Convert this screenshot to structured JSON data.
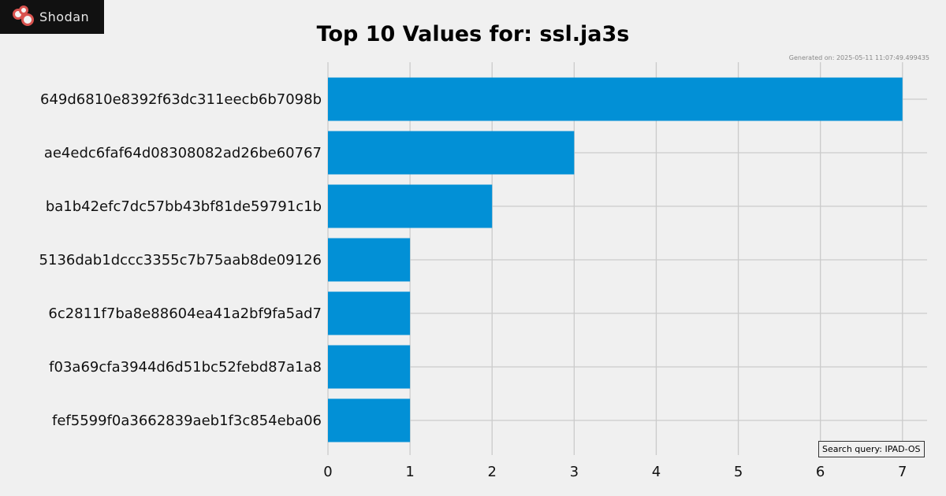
{
  "logo": {
    "text": "Shodan"
  },
  "generated": "Generated on: 2025-05-11 11:07:49.499435",
  "query": "Search query: IPAD-OS",
  "colors": {
    "bar": "#0290d6",
    "grid": "#cbcbcb",
    "background": "#f0f0f0"
  },
  "chart_data": {
    "type": "bar",
    "orientation": "horizontal",
    "title": "Top 10 Values for: ssl.ja3s",
    "xlabel": "",
    "ylabel": "",
    "categories": [
      "649d6810e8392f63dc311eecb6b7098b",
      "ae4edc6faf64d08308082ad26be60767",
      "ba1b42efc7dc57bb43bf81de59791c1b",
      "5136dab1dccc3355c7b75aab8de09126",
      "6c2811f7ba8e88604ea41a2bf9fa5ad7",
      "f03a69cfa3944d6d51bc52febd87a1a8",
      "fef5599f0a3662839aeb1f3c854eba06"
    ],
    "values": [
      7,
      3,
      2,
      1,
      1,
      1,
      1
    ],
    "xticks": [
      0,
      1,
      2,
      3,
      4,
      5,
      6,
      7
    ],
    "xlim": [
      0,
      7.3
    ],
    "grid": true
  }
}
